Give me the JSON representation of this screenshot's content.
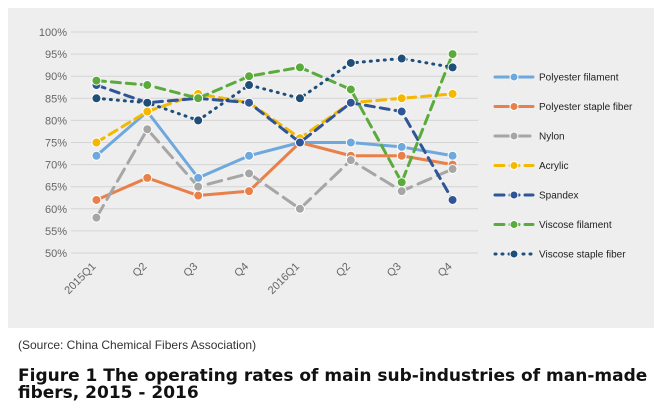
{
  "source_note": "(Source: China Chemical Fibers Association)",
  "caption": "Figure 1  The operating rates of main sub-industries of man-made fibers, 2015 - 2016",
  "chart_data": {
    "type": "line",
    "title": "",
    "xlabel": "",
    "ylabel": "",
    "categories": [
      "2015Q1",
      "Q2",
      "Q3",
      "Q4",
      "2016Q1",
      "Q2",
      "Q3",
      "Q4"
    ],
    "ylim": [
      50,
      100
    ],
    "yticks": [
      "50%",
      "55%",
      "60%",
      "65%",
      "70%",
      "75%",
      "80%",
      "85%",
      "90%",
      "95%",
      "100%"
    ],
    "grid": true,
    "legend_position": "right",
    "series": [
      {
        "name": "Polyester filament",
        "color": "#6fa8dc",
        "style": "solid",
        "values": [
          72,
          82,
          67,
          72,
          75,
          75,
          74,
          72
        ]
      },
      {
        "name": "Polyester staple fiber",
        "color": "#e8804a",
        "style": "solid",
        "values": [
          62,
          67,
          63,
          64,
          75,
          72,
          72,
          70
        ]
      },
      {
        "name": "Nylon",
        "color": "#a6a6a6",
        "style": "longdash",
        "values": [
          58,
          78,
          65,
          68,
          60,
          71,
          64,
          69
        ]
      },
      {
        "name": "Acrylic",
        "color": "#f5b800",
        "style": "dash",
        "values": [
          75,
          82,
          86,
          84,
          76,
          84,
          85,
          86
        ]
      },
      {
        "name": "Spandex",
        "color": "#2f5597",
        "style": "dash",
        "values": [
          88,
          84,
          85,
          84,
          75,
          84,
          82,
          62
        ]
      },
      {
        "name": "Viscose filament",
        "color": "#5aab3c",
        "style": "dash",
        "values": [
          89,
          88,
          85,
          90,
          92,
          87,
          66,
          95
        ]
      },
      {
        "name": "Viscose staple fiber",
        "color": "#1f4e79",
        "style": "dot",
        "values": [
          85,
          84,
          80,
          88,
          85,
          93,
          94,
          92
        ]
      }
    ]
  }
}
